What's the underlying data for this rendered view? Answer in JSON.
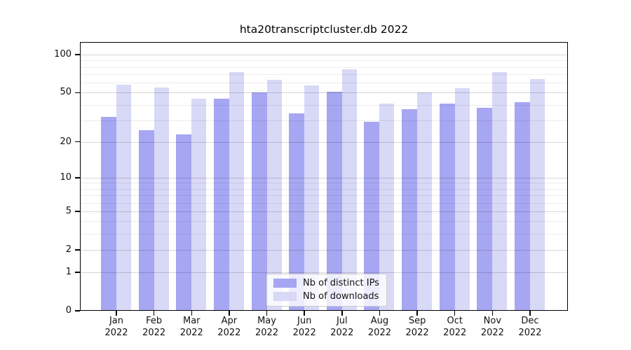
{
  "chart_data": {
    "type": "bar",
    "title": "hta20transcriptcluster.db 2022",
    "categories": [
      "Jan",
      "Feb",
      "Mar",
      "Apr",
      "May",
      "Jun",
      "Jul",
      "Aug",
      "Sep",
      "Oct",
      "Nov",
      "Dec"
    ],
    "year": "2022",
    "series": [
      {
        "name": "Nb of distinct IPs",
        "color": "#a6a6f2",
        "values": [
          32,
          25,
          23,
          45,
          50,
          34,
          51,
          29,
          37,
          41,
          38,
          42
        ]
      },
      {
        "name": "Nb of downloads",
        "color": "#d8d8f7",
        "values": [
          58,
          55,
          45,
          73,
          63,
          57,
          77,
          41,
          50,
          54,
          73,
          64
        ]
      }
    ],
    "yscale": "log1p",
    "ylim": [
      0,
      126
    ],
    "yticks": [
      0,
      1,
      2,
      5,
      10,
      20,
      50,
      100
    ],
    "minor_gridlines": [
      3,
      4,
      6,
      7,
      8,
      9,
      30,
      40,
      60,
      70,
      80,
      90
    ],
    "grid": true,
    "legend_position": "lower center"
  }
}
